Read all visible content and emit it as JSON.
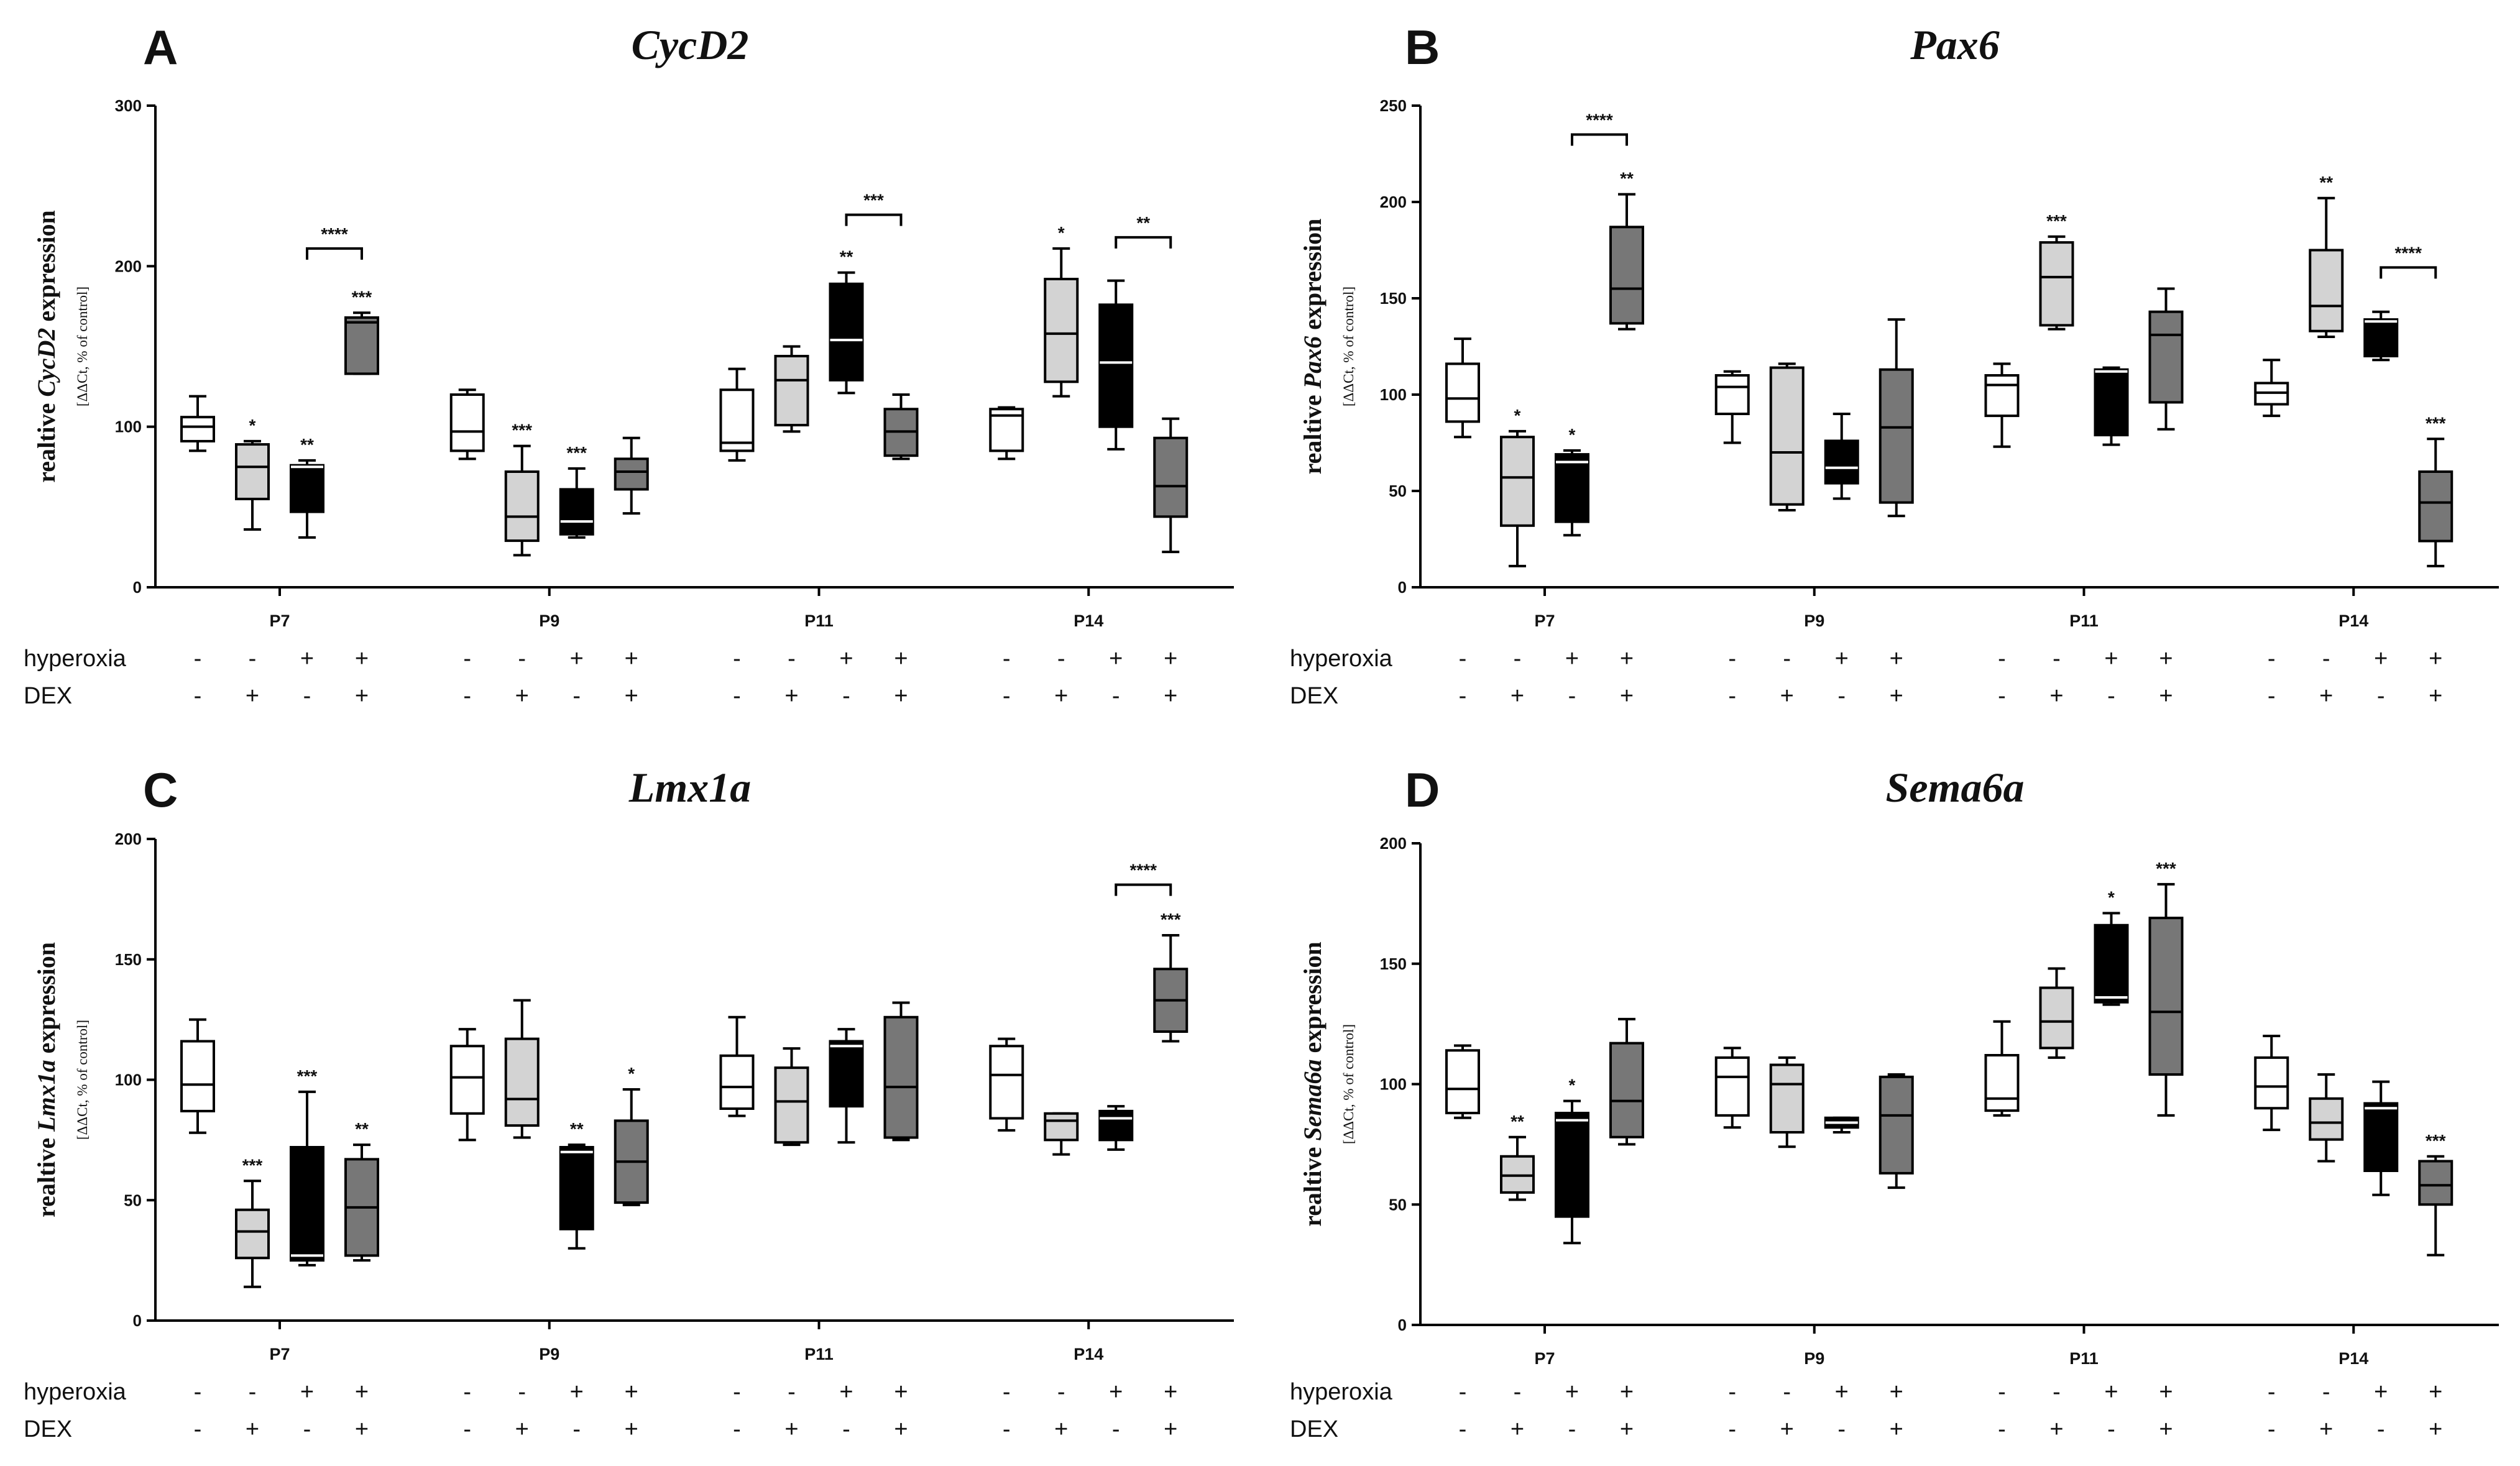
{
  "figure": {
    "row_labels": {
      "hyperoxia": "hyperoxia",
      "dex": "DEX"
    },
    "condition_signs": {
      "hyperoxia": [
        "-",
        "-",
        "+",
        "+"
      ],
      "dex": [
        "-",
        "+",
        "-",
        "+"
      ]
    },
    "box_colors": [
      "#ffffff",
      "#d3d3d3",
      "#000000",
      "#777777"
    ],
    "ylabel_unit": "[ΔΔCt, % of control]"
  },
  "chart_data": [
    {
      "panel": "A",
      "type": "box",
      "title": "CycD2",
      "ylabel_prefix": "realtive ",
      "ylabel_gene": "CycD2",
      "ylabel_suffix": " expression",
      "ylim": [
        0,
        300
      ],
      "yticks": [
        0,
        100,
        200,
        300
      ],
      "categories": [
        "P7",
        "P9",
        "P11",
        "P14"
      ],
      "groups": [
        {
          "label": "P7",
          "boxes": [
            {
              "min": 85,
              "q1": 91,
              "median": 100,
              "q3": 106,
              "max": 119,
              "sig": ""
            },
            {
              "min": 36,
              "q1": 55,
              "median": 75,
              "q3": 89,
              "max": 91,
              "sig": "*"
            },
            {
              "min": 31,
              "q1": 47,
              "median": 75,
              "q3": 76,
              "max": 79,
              "sig": "**"
            },
            {
              "min": 133,
              "q1": 133,
              "median": 165,
              "q3": 168,
              "max": 171,
              "sig": "***"
            }
          ]
        },
        {
          "label": "P9",
          "boxes": [
            {
              "min": 80,
              "q1": 85,
              "median": 97,
              "q3": 120,
              "max": 123,
              "sig": ""
            },
            {
              "min": 20,
              "q1": 29,
              "median": 44,
              "q3": 72,
              "max": 88,
              "sig": "***"
            },
            {
              "min": 31,
              "q1": 33,
              "median": 41,
              "q3": 61,
              "max": 74,
              "sig": "***"
            },
            {
              "min": 46,
              "q1": 61,
              "median": 72,
              "q3": 80,
              "max": 93,
              "sig": ""
            }
          ]
        },
        {
          "label": "P11",
          "boxes": [
            {
              "min": 79,
              "q1": 85,
              "median": 90,
              "q3": 123,
              "max": 136,
              "sig": ""
            },
            {
              "min": 97,
              "q1": 101,
              "median": 129,
              "q3": 144,
              "max": 150,
              "sig": ""
            },
            {
              "min": 121,
              "q1": 129,
              "median": 154,
              "q3": 189,
              "max": 196,
              "sig": "**"
            },
            {
              "min": 80,
              "q1": 82,
              "median": 97,
              "q3": 111,
              "max": 120,
              "sig": ""
            }
          ]
        },
        {
          "label": "P14",
          "boxes": [
            {
              "min": 80,
              "q1": 85,
              "median": 107,
              "q3": 111,
              "max": 112,
              "sig": ""
            },
            {
              "min": 119,
              "q1": 128,
              "median": 158,
              "q3": 192,
              "max": 211,
              "sig": "*"
            },
            {
              "min": 86,
              "q1": 100,
              "median": 140,
              "q3": 176,
              "max": 191,
              "sig": ""
            },
            {
              "min": 22,
              "q1": 44,
              "median": 63,
              "q3": 93,
              "max": 105,
              "sig": ""
            }
          ]
        }
      ],
      "brackets": [
        {
          "group": 0,
          "from": 2,
          "to": 3,
          "value": 211,
          "label": "****"
        },
        {
          "group": 2,
          "from": 2,
          "to": 3,
          "value": 232,
          "label": "***"
        },
        {
          "group": 3,
          "from": 2,
          "to": 3,
          "value": 218,
          "label": "**"
        }
      ]
    },
    {
      "panel": "B",
      "type": "box",
      "title": "Pax6",
      "ylabel_prefix": "realtive ",
      "ylabel_gene": "Pax6",
      "ylabel_suffix": " expression",
      "ylim": [
        0,
        250
      ],
      "yticks": [
        0,
        50,
        100,
        150,
        200,
        250
      ],
      "categories": [
        "P7",
        "P9",
        "P11",
        "P14"
      ],
      "groups": [
        {
          "label": "P7",
          "boxes": [
            {
              "min": 78,
              "q1": 86,
              "median": 98,
              "q3": 116,
              "max": 129,
              "sig": ""
            },
            {
              "min": 11,
              "q1": 32,
              "median": 57,
              "q3": 78,
              "max": 81,
              "sig": "*"
            },
            {
              "min": 27,
              "q1": 34,
              "median": 65,
              "q3": 69,
              "max": 71,
              "sig": "*"
            },
            {
              "min": 134,
              "q1": 137,
              "median": 155,
              "q3": 187,
              "max": 204,
              "sig": "**"
            }
          ]
        },
        {
          "label": "P9",
          "boxes": [
            {
              "min": 75,
              "q1": 90,
              "median": 104,
              "q3": 110,
              "max": 112,
              "sig": ""
            },
            {
              "min": 40,
              "q1": 43,
              "median": 70,
              "q3": 114,
              "max": 116,
              "sig": ""
            },
            {
              "min": 46,
              "q1": 54,
              "median": 62,
              "q3": 76,
              "max": 90,
              "sig": ""
            },
            {
              "min": 37,
              "q1": 44,
              "median": 83,
              "q3": 113,
              "max": 139,
              "sig": ""
            }
          ]
        },
        {
          "label": "P11",
          "boxes": [
            {
              "min": 73,
              "q1": 89,
              "median": 105,
              "q3": 110,
              "max": 116,
              "sig": ""
            },
            {
              "min": 134,
              "q1": 136,
              "median": 161,
              "q3": 179,
              "max": 182,
              "sig": "***"
            },
            {
              "min": 74,
              "q1": 79,
              "median": 112,
              "q3": 113,
              "max": 114,
              "sig": ""
            },
            {
              "min": 82,
              "q1": 96,
              "median": 131,
              "q3": 143,
              "max": 155,
              "sig": ""
            }
          ]
        },
        {
          "label": "P14",
          "boxes": [
            {
              "min": 89,
              "q1": 95,
              "median": 101,
              "q3": 106,
              "max": 118,
              "sig": ""
            },
            {
              "min": 130,
              "q1": 133,
              "median": 146,
              "q3": 175,
              "max": 202,
              "sig": "**"
            },
            {
              "min": 118,
              "q1": 120,
              "median": 138,
              "q3": 139,
              "max": 143,
              "sig": ""
            },
            {
              "min": 11,
              "q1": 24,
              "median": 44,
              "q3": 60,
              "max": 77,
              "sig": "***"
            }
          ]
        }
      ],
      "brackets": [
        {
          "group": 0,
          "from": 2,
          "to": 3,
          "value": 235,
          "label": "****"
        },
        {
          "group": 3,
          "from": 2,
          "to": 3,
          "value": 166,
          "label": "****"
        }
      ]
    },
    {
      "panel": "C",
      "type": "box",
      "title": "Lmx1a",
      "ylabel_prefix": "realtive ",
      "ylabel_gene": "Lmx1a",
      "ylabel_suffix": " expression",
      "ylim": [
        0,
        200
      ],
      "yticks": [
        0,
        50,
        100,
        150,
        200
      ],
      "categories": [
        "P7",
        "P9",
        "P11",
        "P14"
      ],
      "groups": [
        {
          "label": "P7",
          "boxes": [
            {
              "min": 78,
              "q1": 87,
              "median": 98,
              "q3": 116,
              "max": 125,
              "sig": ""
            },
            {
              "min": 14,
              "q1": 26,
              "median": 37,
              "q3": 46,
              "max": 58,
              "sig": "***"
            },
            {
              "min": 23,
              "q1": 25,
              "median": 27,
              "q3": 72,
              "max": 95,
              "sig": "***"
            },
            {
              "min": 25,
              "q1": 27,
              "median": 47,
              "q3": 67,
              "max": 73,
              "sig": "**"
            }
          ]
        },
        {
          "label": "P9",
          "boxes": [
            {
              "min": 75,
              "q1": 86,
              "median": 101,
              "q3": 114,
              "max": 121,
              "sig": ""
            },
            {
              "min": 76,
              "q1": 81,
              "median": 92,
              "q3": 117,
              "max": 133,
              "sig": ""
            },
            {
              "min": 30,
              "q1": 38,
              "median": 70,
              "q3": 72,
              "max": 73,
              "sig": "**"
            },
            {
              "min": 48,
              "q1": 49,
              "median": 66,
              "q3": 83,
              "max": 96,
              "sig": "*"
            }
          ]
        },
        {
          "label": "P11",
          "boxes": [
            {
              "min": 85,
              "q1": 88,
              "median": 97,
              "q3": 110,
              "max": 126,
              "sig": ""
            },
            {
              "min": 73,
              "q1": 74,
              "median": 91,
              "q3": 105,
              "max": 113,
              "sig": ""
            },
            {
              "min": 74,
              "q1": 89,
              "median": 114,
              "q3": 116,
              "max": 121,
              "sig": ""
            },
            {
              "min": 75,
              "q1": 76,
              "median": 97,
              "q3": 126,
              "max": 132,
              "sig": ""
            }
          ]
        },
        {
          "label": "P14",
          "boxes": [
            {
              "min": 79,
              "q1": 84,
              "median": 102,
              "q3": 114,
              "max": 117,
              "sig": ""
            },
            {
              "min": 69,
              "q1": 75,
              "median": 83,
              "q3": 86,
              "max": 86,
              "sig": ""
            },
            {
              "min": 71,
              "q1": 75,
              "median": 84,
              "q3": 87,
              "max": 89,
              "sig": ""
            },
            {
              "min": 116,
              "q1": 120,
              "median": 133,
              "q3": 146,
              "max": 160,
              "sig": "***"
            }
          ]
        }
      ],
      "brackets": [
        {
          "group": 3,
          "from": 2,
          "to": 3,
          "value": 181,
          "label": "****"
        }
      ]
    },
    {
      "panel": "D",
      "type": "box",
      "title": "Sema6a",
      "ylabel_prefix": "realtive ",
      "ylabel_gene": "Sema6a",
      "ylabel_suffix": " expression",
      "ylim": [
        0,
        200
      ],
      "yticks": [
        0,
        50,
        100,
        150,
        200
      ],
      "categories": [
        "P7",
        "P9",
        "P11",
        "P14"
      ],
      "groups": [
        {
          "label": "P7",
          "boxes": [
            {
              "min": 86,
              "q1": 88,
              "median": 98,
              "q3": 114,
              "max": 116,
              "sig": ""
            },
            {
              "min": 52,
              "q1": 55,
              "median": 62,
              "q3": 70,
              "max": 78,
              "sig": "**"
            },
            {
              "min": 34,
              "q1": 45,
              "median": 85,
              "q3": 88,
              "max": 93,
              "sig": "*"
            },
            {
              "min": 75,
              "q1": 78,
              "median": 93,
              "q3": 117,
              "max": 127,
              "sig": ""
            }
          ]
        },
        {
          "label": "P9",
          "boxes": [
            {
              "min": 82,
              "q1": 87,
              "median": 103,
              "q3": 111,
              "max": 115,
              "sig": ""
            },
            {
              "min": 74,
              "q1": 80,
              "median": 100,
              "q3": 108,
              "max": 111,
              "sig": ""
            },
            {
              "min": 80,
              "q1": 82,
              "median": 84,
              "q3": 86,
              "max": 86,
              "sig": ""
            },
            {
              "min": 57,
              "q1": 63,
              "median": 87,
              "q3": 103,
              "max": 104,
              "sig": ""
            }
          ]
        },
        {
          "label": "P11",
          "boxes": [
            {
              "min": 87,
              "q1": 89,
              "median": 94,
              "q3": 112,
              "max": 126,
              "sig": ""
            },
            {
              "min": 111,
              "q1": 115,
              "median": 126,
              "q3": 140,
              "max": 148,
              "sig": ""
            },
            {
              "min": 133,
              "q1": 134,
              "median": 136,
              "q3": 166,
              "max": 171,
              "sig": "*"
            },
            {
              "min": 87,
              "q1": 104,
              "median": 130,
              "q3": 169,
              "max": 183,
              "sig": "***"
            }
          ]
        },
        {
          "label": "P14",
          "boxes": [
            {
              "min": 81,
              "q1": 90,
              "median": 99,
              "q3": 111,
              "max": 120,
              "sig": ""
            },
            {
              "min": 68,
              "q1": 77,
              "median": 84,
              "q3": 94,
              "max": 104,
              "sig": ""
            },
            {
              "min": 54,
              "q1": 64,
              "median": 90,
              "q3": 92,
              "max": 101,
              "sig": ""
            },
            {
              "min": 29,
              "q1": 50,
              "median": 58,
              "q3": 68,
              "max": 70,
              "sig": "***"
            }
          ]
        }
      ],
      "brackets": []
    }
  ]
}
